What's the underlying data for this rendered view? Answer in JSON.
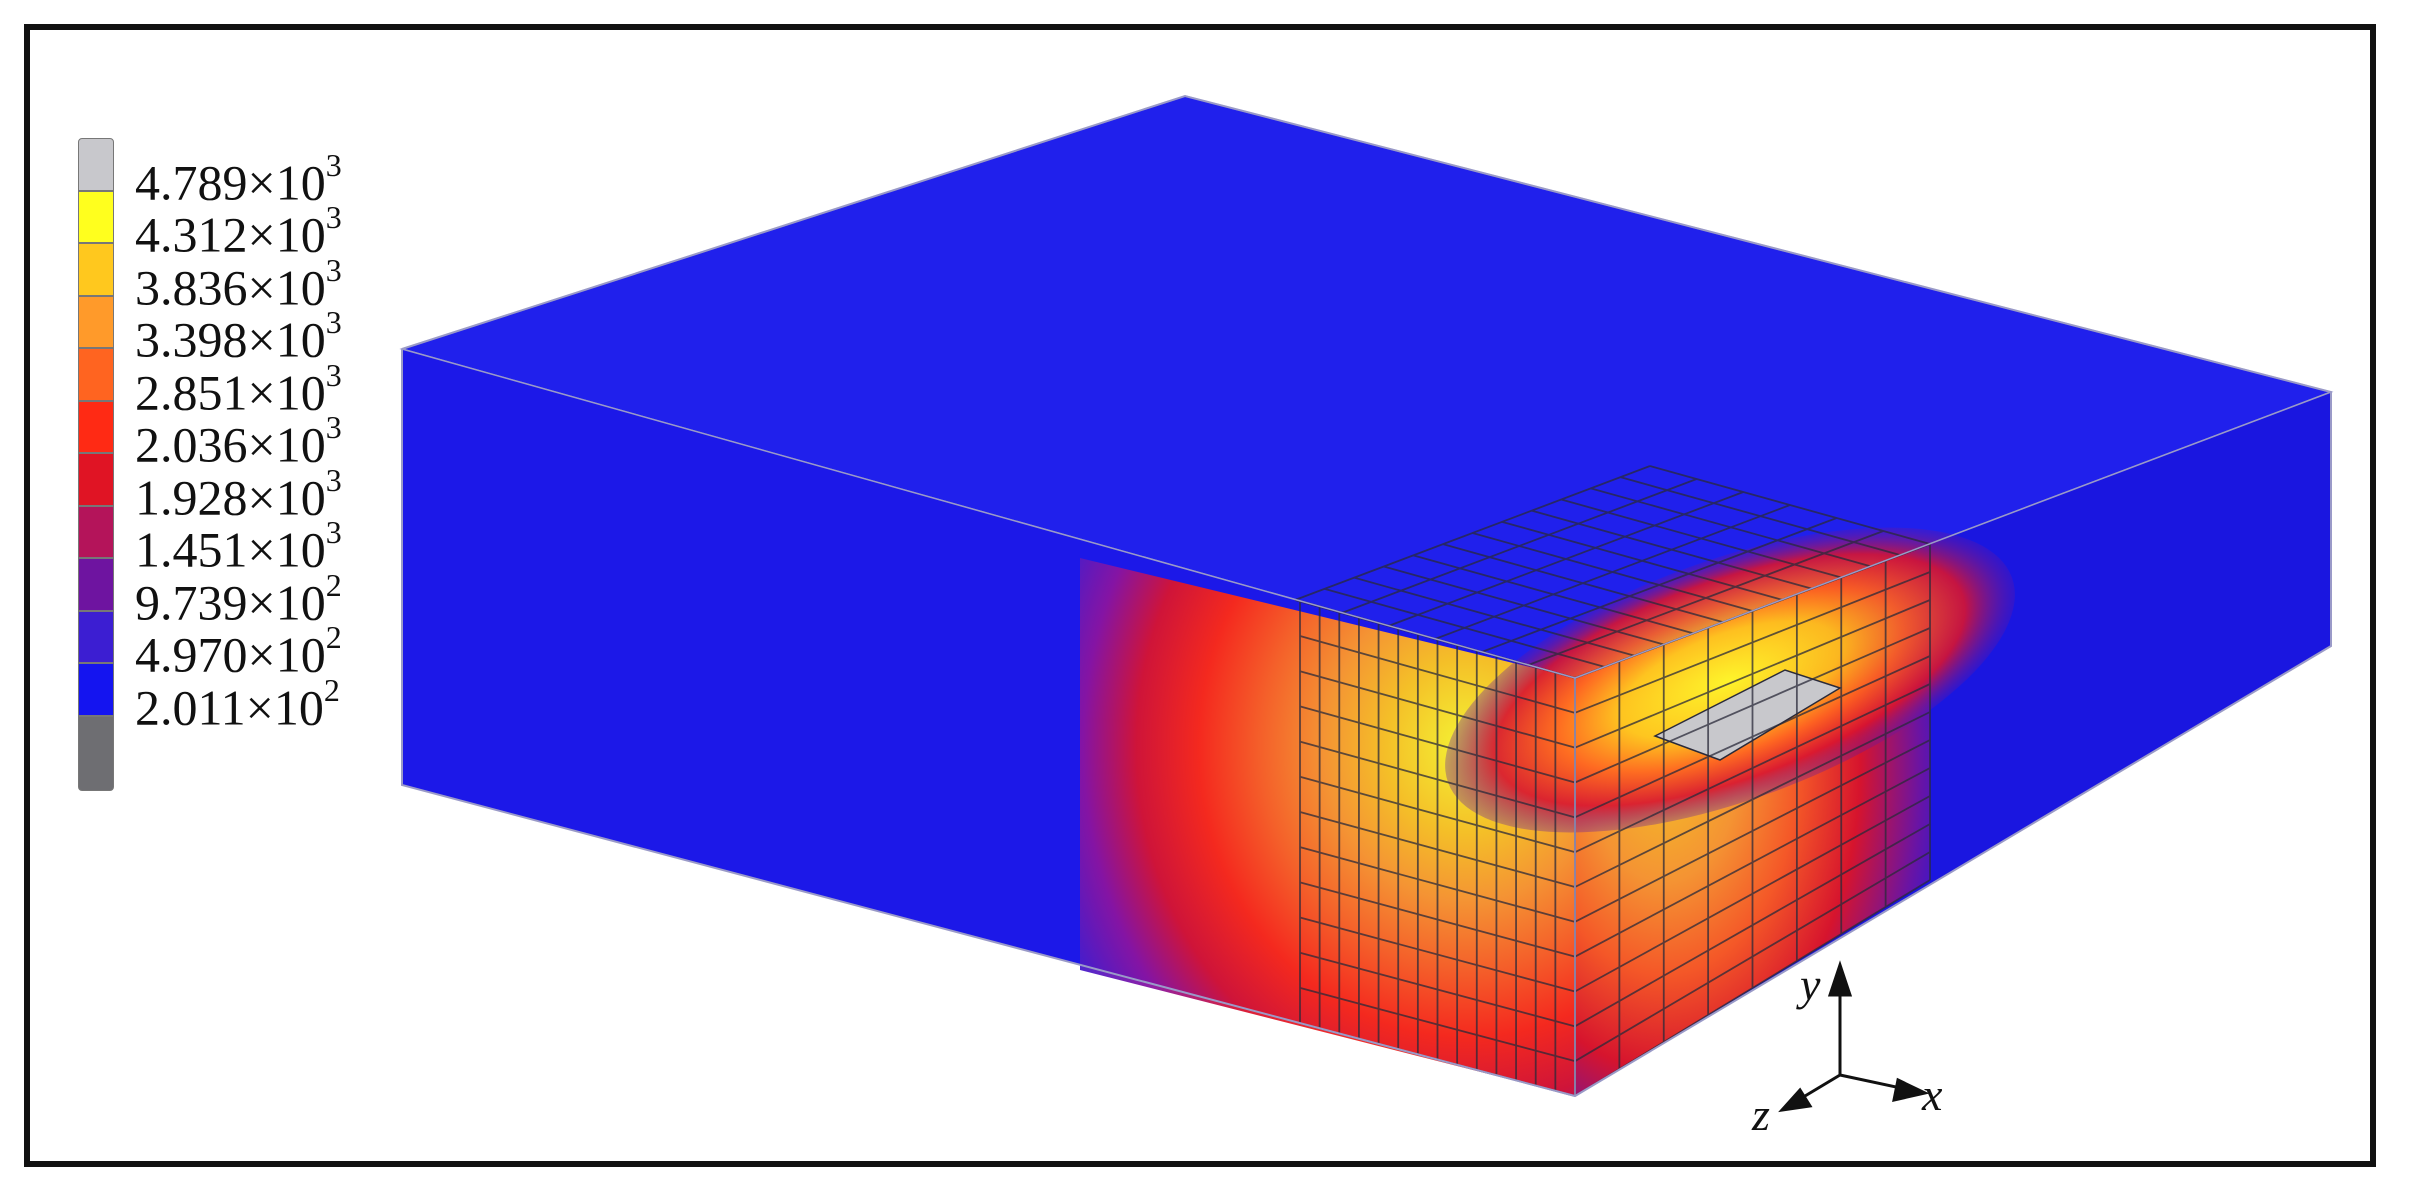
{
  "legend": {
    "entries": [
      {
        "mantissa": "4.789",
        "exponent": "3",
        "color": "#c8c8cc"
      },
      {
        "mantissa": "4.312",
        "exponent": "3",
        "color": "#ffff1e"
      },
      {
        "mantissa": "3.836",
        "exponent": "3",
        "color": "#ffc81e"
      },
      {
        "mantissa": "3.398",
        "exponent": "3",
        "color": "#ff9a2a"
      },
      {
        "mantissa": "2.851",
        "exponent": "3",
        "color": "#ff6420"
      },
      {
        "mantissa": "2.036",
        "exponent": "3",
        "color": "#ff2a14"
      },
      {
        "mantissa": "1.928",
        "exponent": "3",
        "color": "#e01424"
      },
      {
        "mantissa": "1.451",
        "exponent": "3",
        "color": "#b4145a"
      },
      {
        "mantissa": "9.739",
        "exponent": "2",
        "color": "#6e14a0"
      },
      {
        "mantissa": "4.970",
        "exponent": "2",
        "color": "#3c1ed2"
      },
      {
        "mantissa": "2.011",
        "exponent": "2",
        "color": "#1414f0"
      }
    ],
    "bottom_color": "#6e6e72",
    "times_symbol": "×10"
  },
  "axes": {
    "x": "x",
    "y": "y",
    "z": "z"
  },
  "colors": {
    "body_blue": "#1c18e8",
    "top_blue": "#2222ee",
    "mesh": "#2a2a3a"
  }
}
